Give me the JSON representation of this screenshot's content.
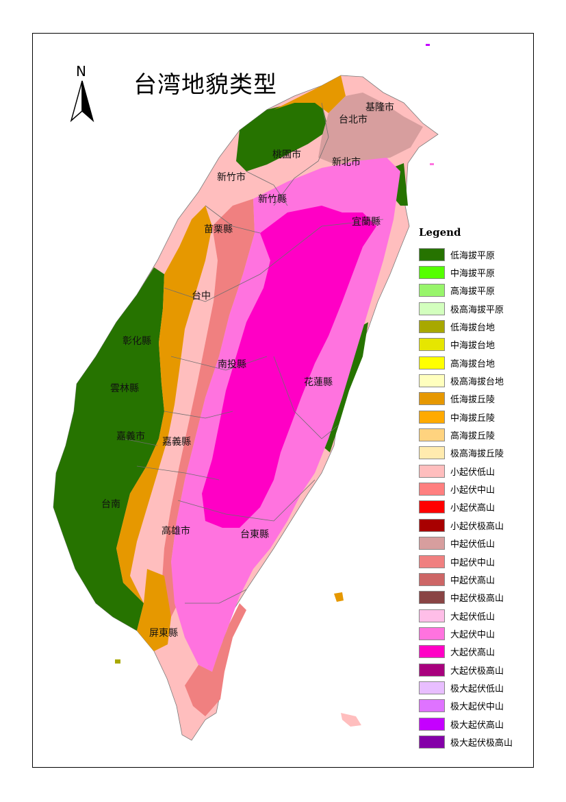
{
  "title": "台湾地貌类型",
  "north_arrow": {
    "label": "N"
  },
  "cities": [
    {
      "id": "keelung",
      "name": "基隆市"
    },
    {
      "id": "taipei",
      "name": "台北市"
    },
    {
      "id": "taoyuan",
      "name": "桃園市"
    },
    {
      "id": "newtaipei",
      "name": "新北市"
    },
    {
      "id": "hsinchu-city",
      "name": "新竹市"
    },
    {
      "id": "hsinchu-county",
      "name": "新竹縣"
    },
    {
      "id": "miaoli",
      "name": "苗栗縣"
    },
    {
      "id": "yilan",
      "name": "宜蘭縣"
    },
    {
      "id": "taichung",
      "name": "台中"
    },
    {
      "id": "changhua",
      "name": "彰化縣"
    },
    {
      "id": "nantou",
      "name": "南投縣"
    },
    {
      "id": "hualien",
      "name": "花蓮縣"
    },
    {
      "id": "yunlin",
      "name": "雲林縣"
    },
    {
      "id": "chiayi-city",
      "name": "嘉義市"
    },
    {
      "id": "chiayi-county",
      "name": "嘉義縣"
    },
    {
      "id": "tainan",
      "name": "台南"
    },
    {
      "id": "kaohsiung",
      "name": "高雄市"
    },
    {
      "id": "taitung",
      "name": "台東縣"
    },
    {
      "id": "pingtung",
      "name": "屏東縣"
    }
  ],
  "legend": {
    "title": "Legend",
    "items": [
      {
        "label": "低海拔平原",
        "color": "#267300"
      },
      {
        "label": "中海拔平原",
        "color": "#55ff00"
      },
      {
        "label": "高海拔平原",
        "color": "#98f56b"
      },
      {
        "label": "极高海拔平原",
        "color": "#d3ffbe"
      },
      {
        "label": "低海拔台地",
        "color": "#a8a800"
      },
      {
        "label": "中海拔台地",
        "color": "#e6e600"
      },
      {
        "label": "高海拔台地",
        "color": "#ffff00"
      },
      {
        "label": "极高海拔台地",
        "color": "#ffffbe"
      },
      {
        "label": "低海拔丘陵",
        "color": "#e69800"
      },
      {
        "label": "中海拔丘陵",
        "color": "#ffaa00"
      },
      {
        "label": "高海拔丘陵",
        "color": "#ffd37f"
      },
      {
        "label": "极高海拔丘陵",
        "color": "#ffebaf"
      },
      {
        "label": "小起伏低山",
        "color": "#ffbebe"
      },
      {
        "label": "小起伏中山",
        "color": "#ff7f7f"
      },
      {
        "label": "小起伏高山",
        "color": "#ff0000"
      },
      {
        "label": "小起伏极高山",
        "color": "#a80000"
      },
      {
        "label": "中起伏低山",
        "color": "#d79e9e"
      },
      {
        "label": "中起伏中山",
        "color": "#f08080"
      },
      {
        "label": "中起伏高山",
        "color": "#cd6666"
      },
      {
        "label": "中起伏极高山",
        "color": "#894444"
      },
      {
        "label": "大起伏低山",
        "color": "#ffbee8"
      },
      {
        "label": "大起伏中山",
        "color": "#ff73df"
      },
      {
        "label": "大起伏高山",
        "color": "#ff00c5"
      },
      {
        "label": "大起伏极高山",
        "color": "#a8007d"
      },
      {
        "label": "极大起伏低山",
        "color": "#e8beff"
      },
      {
        "label": "极大起伏中山",
        "color": "#df73ff"
      },
      {
        "label": "极大起伏高山",
        "color": "#c500ff"
      },
      {
        "label": "极大起伏极高山",
        "color": "#8400a8"
      }
    ]
  }
}
